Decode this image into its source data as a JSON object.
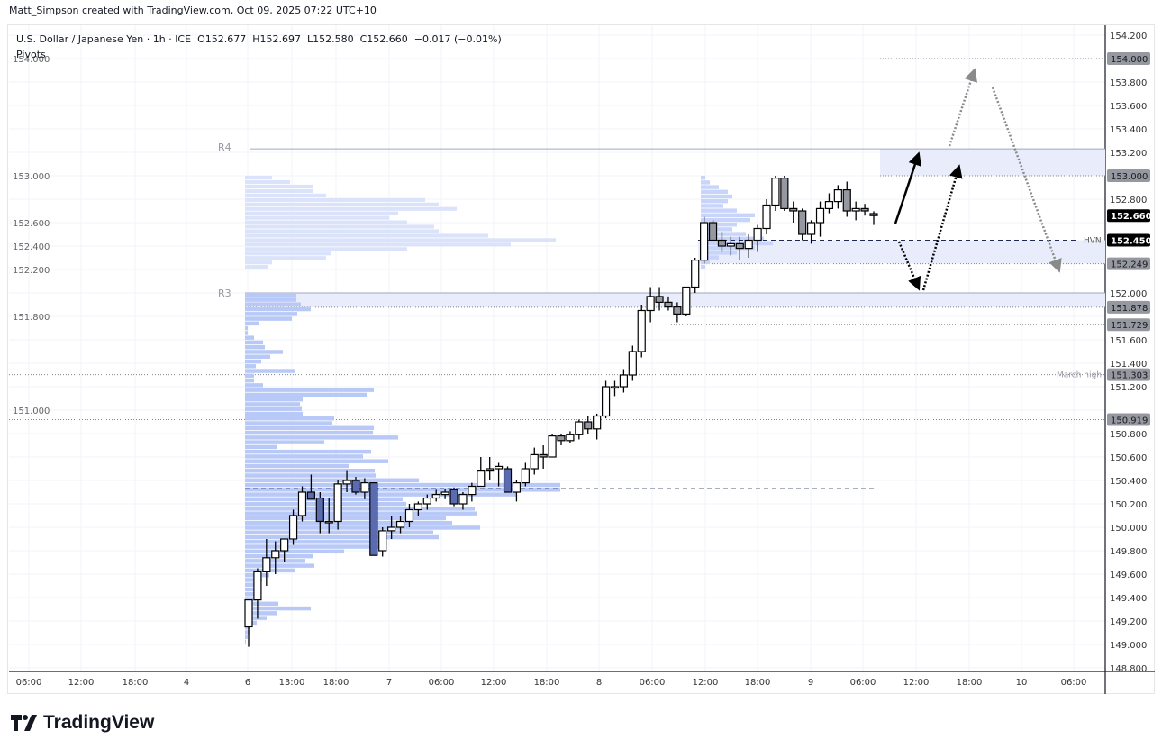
{
  "credit": "Matt_Simpson created with TradingView.com, Oct 09, 2025 07:22 UTC+10",
  "legend": {
    "symbol": "U.S. Dollar / Japanese Yen · 1h · ICE",
    "open": "O152.677",
    "high": "H152.697",
    "low": "L152.580",
    "close": "C152.660",
    "change": "−0.017 (−0.01%)",
    "indicator": "Pivots"
  },
  "brand": "TradingView",
  "colors": {
    "candle_up": "#ffffff",
    "candle_down_early": "#5b6bb0",
    "candle_down": "#9598a1",
    "wick": "#000000",
    "zone": "#e8ecfb",
    "profile": "#b8c9f8",
    "profile_upper": "#dbe3fb",
    "badge": "#9598a1",
    "badge_current": "#000000"
  },
  "chart_data": {
    "type": "candlestick",
    "title": "U.S. Dollar / Japanese Yen · 1h · ICE",
    "ylim": [
      148.8,
      154.2
    ],
    "grid": true,
    "y_ticks": [
      "154.200",
      "154.000",
      "153.800",
      "153.600",
      "153.400",
      "153.200",
      "153.000",
      "152.800",
      "152.600",
      "152.400",
      "152.200",
      "152.000",
      "151.800",
      "151.600",
      "151.400",
      "151.200",
      "151.000",
      "150.800",
      "150.600",
      "150.400",
      "150.200",
      "150.000",
      "149.800",
      "149.600",
      "149.400",
      "149.200",
      "149.000",
      "148.800"
    ],
    "x_ticks": [
      "06:00",
      "12:00",
      "18:00",
      "4",
      "6",
      "13:00",
      "18:00",
      "7",
      "06:00",
      "12:00",
      "18:00",
      "8",
      "06:00",
      "12:00",
      "18:00",
      "9",
      "06:00",
      "12:00",
      "18:00",
      "10",
      "06:00"
    ],
    "ohlc": [
      [
        149.15,
        149.38,
        148.98,
        149.38
      ],
      [
        149.38,
        149.65,
        149.22,
        149.62
      ],
      [
        149.62,
        149.9,
        149.5,
        149.74
      ],
      [
        149.74,
        149.88,
        149.6,
        149.8
      ],
      [
        149.8,
        149.9,
        149.7,
        149.9
      ],
      [
        149.9,
        150.15,
        149.85,
        150.1
      ],
      [
        150.1,
        150.35,
        150.05,
        150.3
      ],
      [
        150.3,
        150.45,
        150.24,
        150.24
      ],
      [
        150.25,
        150.3,
        149.95,
        150.05
      ],
      [
        150.05,
        150.25,
        149.95,
        150.05
      ],
      [
        150.05,
        150.4,
        149.98,
        150.37
      ],
      [
        150.37,
        150.48,
        150.3,
        150.4
      ],
      [
        150.4,
        150.43,
        150.28,
        150.3
      ],
      [
        150.3,
        150.42,
        150.24,
        150.38
      ],
      [
        150.38,
        150.38,
        149.76,
        149.76
      ],
      [
        149.8,
        150.0,
        149.75,
        149.97
      ],
      [
        149.97,
        150.1,
        149.9,
        150.0
      ],
      [
        150.0,
        150.1,
        149.95,
        150.05
      ],
      [
        150.05,
        150.2,
        150.0,
        150.15
      ],
      [
        150.15,
        150.22,
        150.1,
        150.2
      ],
      [
        150.2,
        150.28,
        150.15,
        150.25
      ],
      [
        150.25,
        150.32,
        150.22,
        150.28
      ],
      [
        150.28,
        150.33,
        150.24,
        150.3
      ],
      [
        150.32,
        150.34,
        150.18,
        150.2
      ],
      [
        150.2,
        150.3,
        150.15,
        150.28
      ],
      [
        150.28,
        150.38,
        150.22,
        150.35
      ],
      [
        150.35,
        150.6,
        150.35,
        150.48
      ],
      [
        150.48,
        150.6,
        150.4,
        150.5
      ],
      [
        150.5,
        150.55,
        150.35,
        150.52
      ],
      [
        150.5,
        150.52,
        150.3,
        150.3
      ],
      [
        150.3,
        150.4,
        150.22,
        150.38
      ],
      [
        150.38,
        150.55,
        150.35,
        150.5
      ],
      [
        150.5,
        150.68,
        150.45,
        150.62
      ],
      [
        150.62,
        150.7,
        150.5,
        150.6
      ],
      [
        150.6,
        150.8,
        150.6,
        150.78
      ],
      [
        150.78,
        150.8,
        150.7,
        150.74
      ],
      [
        150.74,
        150.82,
        150.72,
        150.79
      ],
      [
        150.79,
        150.92,
        150.75,
        150.9
      ],
      [
        150.9,
        150.95,
        150.8,
        150.84
      ],
      [
        150.84,
        150.97,
        150.75,
        150.95
      ],
      [
        150.95,
        151.25,
        150.93,
        151.2
      ],
      [
        151.2,
        151.25,
        151.12,
        151.2
      ],
      [
        151.2,
        151.35,
        151.15,
        151.3
      ],
      [
        151.3,
        151.55,
        151.25,
        151.5
      ],
      [
        151.5,
        151.9,
        151.45,
        151.85
      ],
      [
        151.85,
        152.05,
        151.75,
        151.97
      ],
      [
        151.97,
        152.05,
        151.85,
        151.92
      ],
      [
        151.92,
        151.97,
        151.85,
        151.88
      ],
      [
        151.88,
        151.92,
        151.75,
        151.82
      ],
      [
        151.82,
        152.05,
        151.8,
        152.05
      ],
      [
        152.05,
        152.3,
        152.0,
        152.28
      ],
      [
        152.28,
        152.65,
        152.25,
        152.6
      ],
      [
        152.6,
        152.62,
        152.45,
        152.45
      ],
      [
        152.45,
        152.52,
        152.35,
        152.4
      ],
      [
        152.4,
        152.48,
        152.32,
        152.42
      ],
      [
        152.42,
        152.48,
        152.28,
        152.38
      ],
      [
        152.38,
        152.5,
        152.3,
        152.45
      ],
      [
        152.45,
        152.58,
        152.35,
        152.55
      ],
      [
        152.55,
        152.8,
        152.5,
        152.75
      ],
      [
        152.75,
        153.0,
        152.7,
        152.98
      ],
      [
        152.98,
        153.0,
        152.7,
        152.72
      ],
      [
        152.72,
        152.78,
        152.6,
        152.7
      ],
      [
        152.7,
        152.72,
        152.45,
        152.5
      ],
      [
        152.5,
        152.62,
        152.42,
        152.6
      ],
      [
        152.6,
        152.78,
        152.48,
        152.72
      ],
      [
        152.72,
        152.85,
        152.68,
        152.78
      ],
      [
        152.78,
        152.92,
        152.72,
        152.88
      ],
      [
        152.88,
        152.95,
        152.65,
        152.7
      ],
      [
        152.7,
        152.78,
        152.62,
        152.72
      ],
      [
        152.72,
        152.76,
        152.66,
        152.7
      ],
      [
        152.677,
        152.697,
        152.58,
        152.66
      ]
    ],
    "volume_profile_lower": {
      "price_top": 152.0,
      "price_bottom": 149.0,
      "poc": 150.33,
      "volumes": [
        57,
        57,
        62,
        73,
        58,
        52,
        15,
        3,
        3,
        10,
        20,
        22,
        42,
        28,
        18,
        12,
        55,
        10,
        10,
        20,
        143,
        135,
        64,
        61,
        63,
        64,
        99,
        97,
        143,
        142,
        170,
        88,
        35,
        140,
        131,
        159,
        115,
        144,
        145,
        193,
        350,
        350,
        301,
        175,
        179,
        255,
        257,
        223,
        230,
        261,
        209,
        215,
        150,
        150,
        110,
        76,
        67,
        77,
        56,
        27,
        19,
        14,
        14,
        10,
        12,
        37,
        73,
        35,
        24,
        13,
        6,
        5,
        3,
        1
      ]
    },
    "volume_profile_upper": {
      "price_top": 153.0,
      "price_bottom": 152.2,
      "volumes": [
        30,
        50,
        75,
        75,
        90,
        200,
        215,
        235,
        170,
        160,
        180,
        210,
        215,
        270,
        345,
        295,
        180,
        95,
        90,
        30,
        25
      ]
    },
    "volume_profile_session": {
      "price_top": 153.0,
      "price_bottom": 152.2,
      "poc": 152.45,
      "volumes": [
        5,
        10,
        20,
        30,
        35,
        30,
        25,
        40,
        60,
        55,
        40,
        35,
        50,
        70,
        80,
        60,
        40,
        20,
        10,
        5
      ]
    },
    "levels": [
      {
        "label": "R4",
        "price": 153.23,
        "style": "solid"
      },
      {
        "label": "R3",
        "price": 152.0,
        "style": "solid"
      },
      {
        "label": "HVN",
        "price": 152.45,
        "style": "dashed"
      },
      {
        "label": "March high",
        "price": 151.303,
        "style": "dotted"
      }
    ],
    "zones": [
      [
        153.0,
        153.23
      ],
      [
        152.249,
        152.45
      ],
      [
        151.878,
        152.0
      ]
    ],
    "price_badges": [
      {
        "text": "154.000",
        "price": 154.0,
        "current": false
      },
      {
        "text": "153.000",
        "price": 153.0,
        "current": false
      },
      {
        "text": "152.660",
        "price": 152.66,
        "current": true
      },
      {
        "text": "152.450",
        "price": 152.45,
        "current": true
      },
      {
        "text": "152.249",
        "price": 152.249,
        "current": false
      },
      {
        "text": "151.878",
        "price": 151.878,
        "current": false
      },
      {
        "text": "151.729",
        "price": 151.729,
        "current": false
      },
      {
        "text": "151.303",
        "price": 151.303,
        "current": false
      },
      {
        "text": "150.919",
        "price": 150.919,
        "current": false
      }
    ]
  }
}
